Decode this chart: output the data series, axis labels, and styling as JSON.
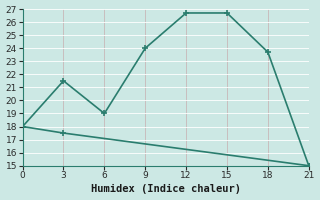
{
  "line1_x": [
    0,
    3,
    6,
    9,
    12,
    15,
    18,
    21
  ],
  "line1_y": [
    18,
    21.5,
    19,
    24,
    26.7,
    26.7,
    23.7,
    15
  ],
  "line2_x": [
    0,
    3,
    21
  ],
  "line2_y": [
    18,
    17.5,
    15
  ],
  "line_color": "#2a7d6e",
  "bg_color": "#cce8e4",
  "grid_color": "#b0d8d2",
  "xlabel": "Humidex (Indice chaleur)",
  "ylim": [
    15,
    27
  ],
  "xlim": [
    0,
    21
  ],
  "xticks": [
    0,
    3,
    6,
    9,
    12,
    15,
    18,
    21
  ],
  "yticks": [
    15,
    16,
    17,
    18,
    19,
    20,
    21,
    22,
    23,
    24,
    25,
    26,
    27
  ],
  "marker": "+",
  "markersize": 5,
  "linewidth": 1.2,
  "tick_fontsize": 6.5,
  "xlabel_fontsize": 7.5
}
